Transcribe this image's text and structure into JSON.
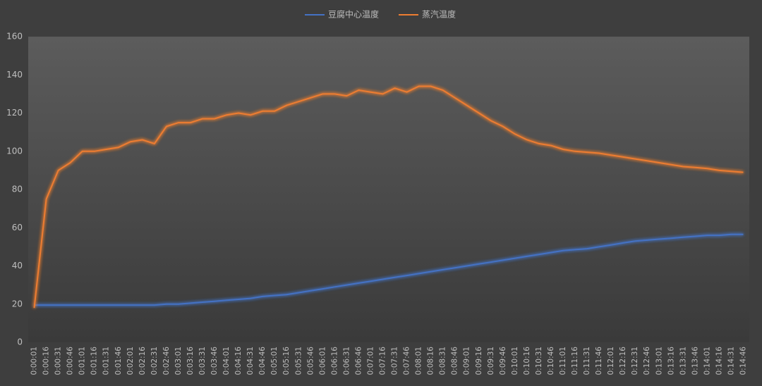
{
  "chart_data": {
    "type": "line",
    "categories": [
      "0:00:01",
      "0:00:16",
      "0:00:31",
      "0:00:46",
      "0:01:01",
      "0:01:16",
      "0:01:31",
      "0:01:46",
      "0:02:01",
      "0:02:16",
      "0:02:31",
      "0:02:46",
      "0:03:01",
      "0:03:16",
      "0:03:31",
      "0:03:46",
      "0:04:01",
      "0:04:16",
      "0:04:31",
      "0:04:46",
      "0:05:01",
      "0:05:16",
      "0:05:31",
      "0:05:46",
      "0:06:01",
      "0:06:16",
      "0:06:31",
      "0:06:46",
      "0:07:01",
      "0:07:16",
      "0:07:31",
      "0:07:46",
      "0:08:01",
      "0:08:16",
      "0:08:31",
      "0:08:46",
      "0:09:01",
      "0:09:16",
      "0:09:31",
      "0:09:46",
      "0:10:01",
      "0:10:16",
      "0:10:31",
      "0:10:46",
      "0:11:01",
      "0:11:16",
      "0:11:31",
      "0:11:46",
      "0:12:01",
      "0:12:16",
      "0:12:31",
      "0:12:46",
      "0:13:01",
      "0:13:16",
      "0:13:31",
      "0:13:46",
      "0:14:01",
      "0:14:16",
      "0:14:31",
      "0:14:46"
    ],
    "series": [
      {
        "name": "豆腐中心温度",
        "color": "#4472c4",
        "values": [
          19.5,
          19.5,
          19.5,
          19.5,
          19.5,
          19.5,
          19.5,
          19.5,
          19.5,
          19.5,
          19.5,
          20,
          20,
          20.5,
          21,
          21.5,
          22,
          22.5,
          23,
          24,
          24.5,
          25,
          26,
          27,
          28,
          29,
          30,
          31,
          32,
          33,
          34,
          35,
          36,
          37,
          38,
          39,
          40,
          41,
          42,
          43,
          44,
          45,
          46,
          47,
          48,
          48.5,
          49,
          50,
          51,
          52,
          53,
          53.5,
          54,
          54.5,
          55,
          55.5,
          56,
          56,
          56.5,
          56.5
        ]
      },
      {
        "name": "蒸汽温度",
        "color": "#ed7d31",
        "values": [
          18,
          75,
          90,
          94,
          100,
          100,
          101,
          102,
          105,
          106,
          104,
          113,
          115,
          115,
          117,
          117,
          119,
          120,
          119,
          121,
          121,
          124,
          126,
          128,
          130,
          130,
          129,
          132,
          131,
          130,
          133,
          131,
          134,
          134,
          132,
          128,
          124,
          120,
          116,
          113,
          109,
          106,
          104,
          103,
          101,
          100,
          99.5,
          99,
          98,
          97,
          96,
          95,
          94,
          93,
          92,
          91.5,
          91,
          90,
          89.5,
          89
        ]
      }
    ],
    "ylim": [
      0,
      160
    ],
    "yticks": [
      0,
      20,
      40,
      60,
      80,
      100,
      120,
      140,
      160
    ],
    "legend": "top"
  }
}
